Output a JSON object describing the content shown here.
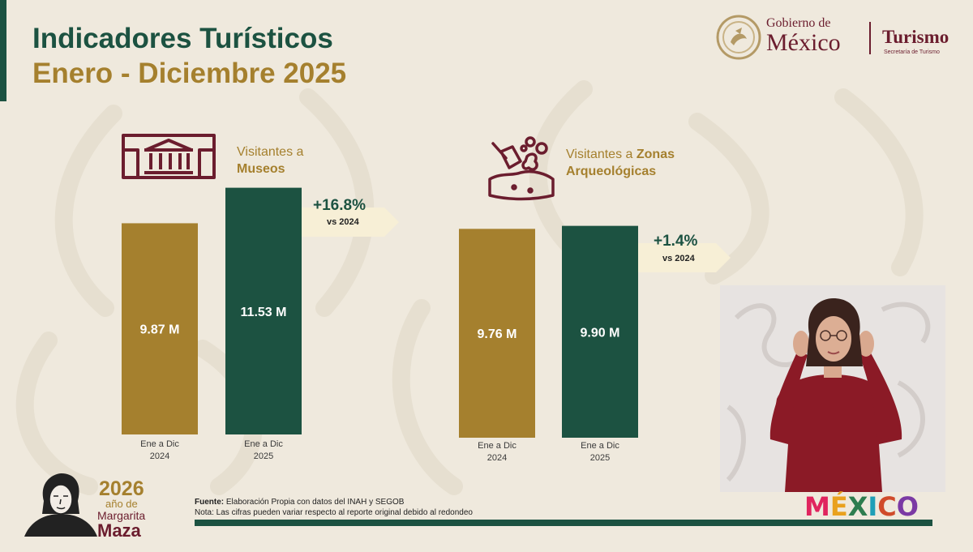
{
  "header": {
    "title_line1": "Indicadores Turísticos",
    "title_line2": "Enero - Diciembre 2025"
  },
  "logo": {
    "gobierno_de": "Gobierno de",
    "mexico": "México",
    "turismo": "Turismo",
    "secretaria": "Secretaría de Turismo"
  },
  "colors": {
    "green": "#1c5241",
    "gold": "#a5802e",
    "wine": "#6b1d2e",
    "background": "#efe9dd"
  },
  "sections": [
    {
      "title_prefix": "Visitantes a ",
      "title_bold": "Museos",
      "icon": "museum-icon"
    },
    {
      "title_prefix": "Visitantes a ",
      "title_bold": "Zonas Arqueológicas",
      "title_bold_line1": "Zonas",
      "title_bold_line2": "Arqueológicas",
      "icon": "archaeology-icon"
    }
  ],
  "chart_data": [
    {
      "type": "bar",
      "title": "Visitantes a Museos",
      "categories": [
        "Ene a Dic 2024",
        "Ene a Dic 2025"
      ],
      "tick_lines": [
        [
          "Ene a Dic",
          "2024"
        ],
        [
          "Ene a Dic",
          "2025"
        ]
      ],
      "values": [
        9.87,
        11.53
      ],
      "value_labels": [
        "9.87 M",
        "11.53 M"
      ],
      "bar_colors": [
        "#a5802e",
        "#1c5241"
      ],
      "change_label": "+16.8%",
      "change_sub": "vs 2024",
      "ylim": [
        0,
        12.0
      ]
    },
    {
      "type": "bar",
      "title": "Visitantes a Zonas Arqueológicas",
      "categories": [
        "Ene a Dic 2024",
        "Ene a Dic 2025"
      ],
      "tick_lines": [
        [
          "Ene a Dic",
          "2024"
        ],
        [
          "Ene a Dic",
          "2025"
        ]
      ],
      "values": [
        9.76,
        9.9
      ],
      "value_labels": [
        "9.76 M",
        "9.90 M"
      ],
      "bar_colors": [
        "#a5802e",
        "#1c5241"
      ],
      "change_label": "+1.4%",
      "change_sub": "vs 2024",
      "ylim": [
        0,
        12.0
      ]
    }
  ],
  "footer": {
    "fuente_label": "Fuente:",
    "fuente_text": " Elaboración Propia con datos del INAH y SEGOB",
    "nota": "Nota: Las cifras pueden variar respecto al reporte original debido al redondeo",
    "year": "2026",
    "anio_de": "año de",
    "margarita": "Margarita",
    "maza": "Maza",
    "brand": "MÉXICO"
  }
}
